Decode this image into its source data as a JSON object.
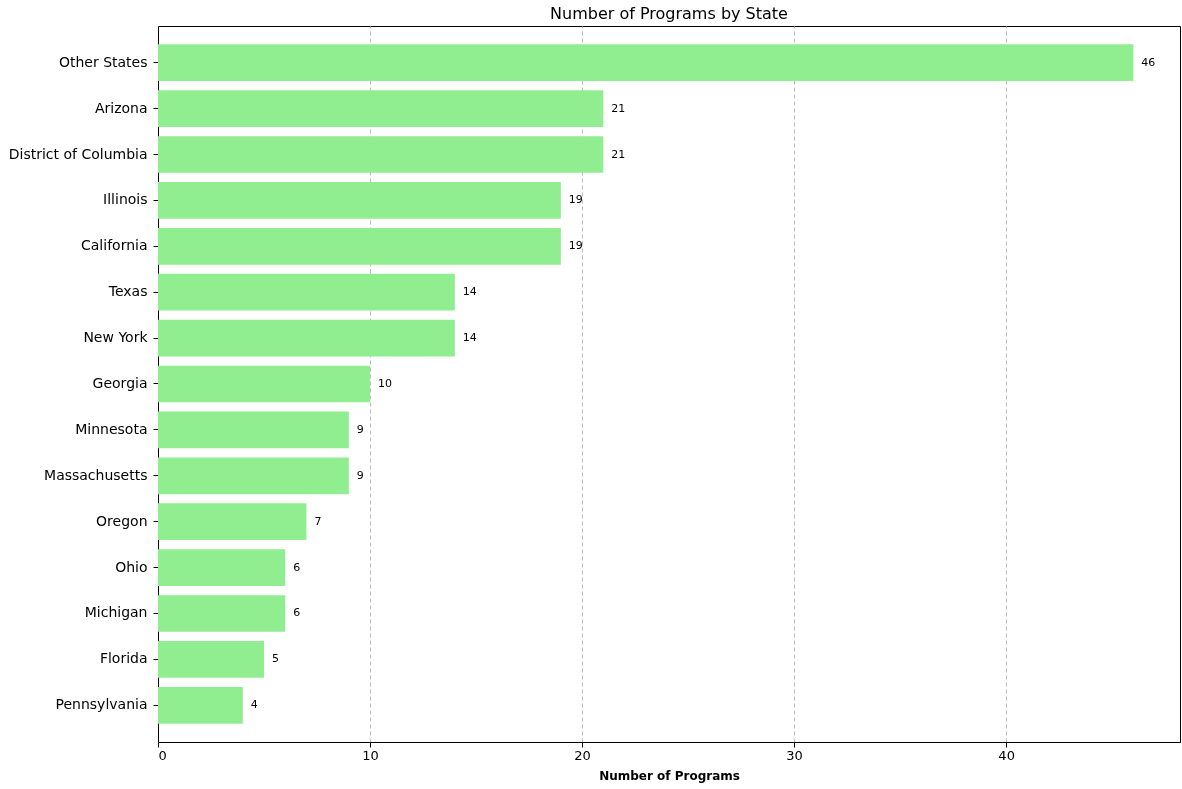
{
  "chart_data": {
    "type": "bar",
    "orientation": "horizontal",
    "title": "Number of Programs by State",
    "xlabel": "Number of Programs",
    "categories": [
      "Other States",
      "Arizona",
      "District of Columbia",
      "Illinois",
      "California",
      "Texas",
      "New York",
      "Georgia",
      "Minnesota",
      "Massachusetts",
      "Oregon",
      "Ohio",
      "Michigan",
      "Florida",
      "Pennsylvania"
    ],
    "values": [
      46,
      21,
      21,
      19,
      19,
      14,
      14,
      10,
      9,
      9,
      7,
      6,
      6,
      5,
      4
    ],
    "color": "#90ee90",
    "xlim": [
      0,
      48.2
    ],
    "xticks": [
      0,
      10,
      20,
      30,
      40
    ],
    "grid": "x",
    "data_labels": true
  }
}
